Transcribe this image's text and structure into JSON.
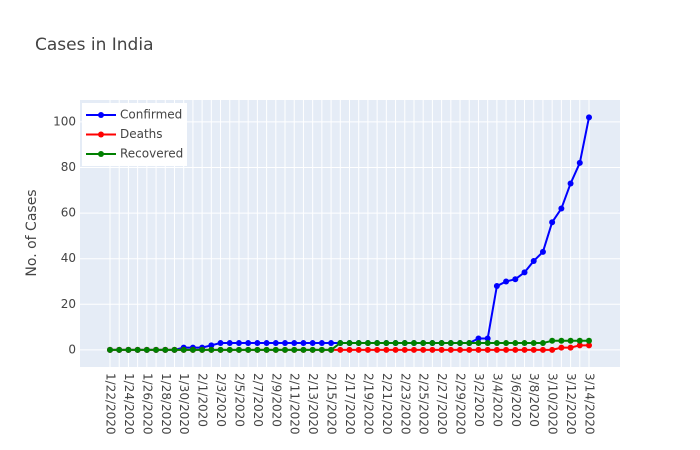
{
  "chart_data": {
    "type": "line",
    "title": "Cases in India",
    "y_label": "No. of Cases",
    "categories": [
      "1/22/2020",
      null,
      "1/24/2020",
      null,
      "1/26/2020",
      null,
      "1/28/2020",
      null,
      "1/30/2020",
      null,
      "2/1/2020",
      null,
      "2/3/2020",
      null,
      "2/5/2020",
      null,
      "2/7/2020",
      null,
      "2/9/2020",
      null,
      "2/11/2020",
      null,
      "2/13/2020",
      null,
      "2/15/2020",
      null,
      "2/17/2020",
      null,
      "2/19/2020",
      null,
      "2/21/2020",
      null,
      "2/23/2020",
      null,
      "2/25/2020",
      null,
      "2/27/2020",
      null,
      "2/29/2020",
      null,
      "3/2/2020",
      null,
      "3/4/2020",
      null,
      "3/6/2020",
      null,
      "3/8/2020",
      null,
      "3/10/2020",
      null,
      "3/12/2020",
      null,
      "3/14/2020"
    ],
    "series": [
      {
        "name": "Confirmed",
        "color": "#0000ff",
        "values": [
          0,
          0,
          0,
          0,
          0,
          0,
          0,
          0,
          1,
          1,
          1,
          2,
          3,
          3,
          3,
          3,
          3,
          3,
          3,
          3,
          3,
          3,
          3,
          3,
          3,
          3,
          3,
          3,
          3,
          3,
          3,
          3,
          3,
          3,
          3,
          3,
          3,
          3,
          3,
          3,
          5,
          5,
          28,
          30,
          31,
          34,
          39,
          43,
          56,
          62,
          73,
          82,
          102
        ]
      },
      {
        "name": "Deaths",
        "color": "#ff0000",
        "values": [
          0,
          0,
          0,
          0,
          0,
          0,
          0,
          0,
          0,
          0,
          0,
          0,
          0,
          0,
          0,
          0,
          0,
          0,
          0,
          0,
          0,
          0,
          0,
          0,
          0,
          0,
          0,
          0,
          0,
          0,
          0,
          0,
          0,
          0,
          0,
          0,
          0,
          0,
          0,
          0,
          0,
          0,
          0,
          0,
          0,
          0,
          0,
          0,
          0,
          1,
          1,
          2,
          2
        ]
      },
      {
        "name": "Recovered",
        "color": "#008000",
        "values": [
          0,
          0,
          0,
          0,
          0,
          0,
          0,
          0,
          0,
          0,
          0,
          0,
          0,
          0,
          0,
          0,
          0,
          0,
          0,
          0,
          0,
          0,
          0,
          0,
          0,
          3,
          3,
          3,
          3,
          3,
          3,
          3,
          3,
          3,
          3,
          3,
          3,
          3,
          3,
          3,
          3,
          3,
          3,
          3,
          3,
          3,
          3,
          3,
          4,
          4,
          4,
          4,
          4
        ]
      }
    ],
    "ylim": [
      -7.5,
      109.6
    ],
    "yticks": [
      0,
      20,
      40,
      60,
      80,
      100
    ],
    "grid": true,
    "legend": "top-left"
  }
}
